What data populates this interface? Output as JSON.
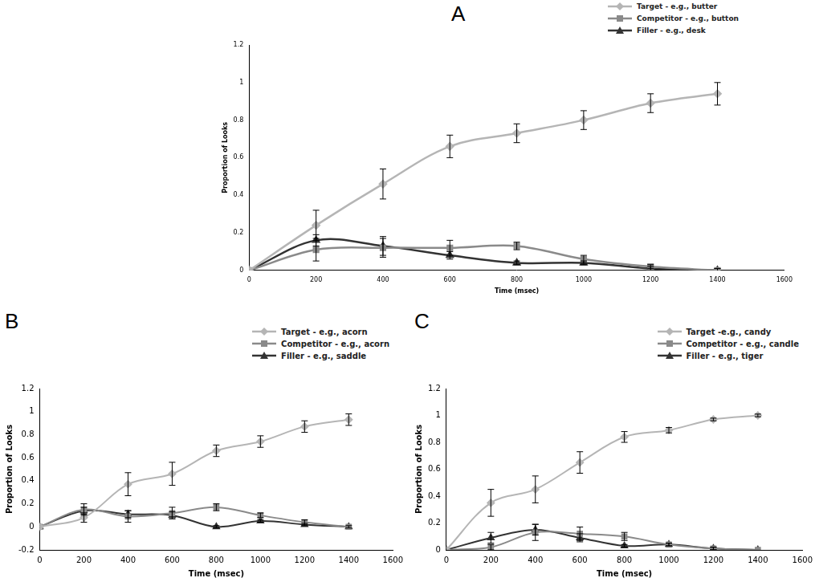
{
  "chart_data": [
    {
      "type": "line",
      "title": "A",
      "x_label": "Time (msec)",
      "y_label": "Proportion of Looks",
      "x": [
        0,
        200,
        400,
        600,
        800,
        1000,
        1200,
        1400
      ],
      "xlim": [
        0,
        1600
      ],
      "xticks": [
        0,
        200,
        400,
        600,
        800,
        1000,
        1200,
        1400,
        1600
      ],
      "ylim": [
        0,
        1.2
      ],
      "yticks": [
        0,
        0.2,
        0.4,
        0.6,
        0.8,
        1,
        1.2
      ],
      "grid": false,
      "legend": "upper right",
      "series": [
        {
          "name": "Target - e.g., butter",
          "color": "#b5b5b5",
          "marker": "diamond",
          "values": [
            0,
            0.24,
            0.46,
            0.66,
            0.73,
            0.8,
            0.89,
            0.94
          ],
          "errors": [
            0,
            0.08,
            0.08,
            0.06,
            0.05,
            0.05,
            0.05,
            0.06
          ]
        },
        {
          "name": "Competitor - e.g., button",
          "color": "#8a8a8a",
          "marker": "square",
          "values": [
            0,
            0.11,
            0.12,
            0.12,
            0.13,
            0.06,
            0.02,
            0
          ],
          "errors": [
            0,
            0.06,
            0.05,
            0.04,
            0.02,
            0.02,
            0.01,
            0.01
          ]
        },
        {
          "name": "Filler - e.g., desk",
          "color": "#333333",
          "marker": "triangle",
          "values": [
            0,
            0.16,
            0.13,
            0.08,
            0.04,
            0.04,
            0.01,
            0
          ],
          "errors": [
            0,
            0.03,
            0.05,
            0.02,
            0.01,
            0.01,
            0.01,
            0.01
          ]
        }
      ]
    },
    {
      "type": "line",
      "title": "B",
      "x_label": "Time (msec)",
      "y_label": "Proportion of Looks",
      "x": [
        0,
        200,
        400,
        600,
        800,
        1000,
        1200,
        1400
      ],
      "xlim": [
        0,
        1600
      ],
      "xticks": [
        0,
        200,
        400,
        600,
        800,
        1000,
        1200,
        1400,
        1600
      ],
      "ylim": [
        -0.2,
        1.2
      ],
      "yticks": [
        -0.2,
        0,
        0.2,
        0.4,
        0.6,
        0.8,
        1,
        1.2
      ],
      "grid": false,
      "legend": "upper right",
      "series": [
        {
          "name": "Target - e.g., acorn",
          "color": "#b5b5b5",
          "marker": "diamond",
          "values": [
            0,
            0.08,
            0.37,
            0.46,
            0.66,
            0.74,
            0.87,
            0.93
          ],
          "errors": [
            0,
            0.04,
            0.1,
            0.1,
            0.05,
            0.05,
            0.05,
            0.05
          ]
        },
        {
          "name": "Competitor - e.g., acorn",
          "color": "#8a8a8a",
          "marker": "square",
          "values": [
            0,
            0.15,
            0.09,
            0.12,
            0.17,
            0.1,
            0.04,
            0
          ],
          "errors": [
            0,
            0.05,
            0.05,
            0.05,
            0.03,
            0.02,
            0.02,
            0.01
          ]
        },
        {
          "name": "Filler - e.g., saddle",
          "color": "#333333",
          "marker": "triangle",
          "values": [
            0,
            0.14,
            0.11,
            0.1,
            0,
            0.05,
            0.02,
            0
          ],
          "errors": [
            0,
            0.03,
            0.03,
            0.03,
            0.01,
            0.01,
            0.01,
            0
          ]
        }
      ]
    },
    {
      "type": "line",
      "title": "C",
      "x_label": "Time (msec)",
      "y_label": "Proportion of Looks",
      "x": [
        0,
        200,
        400,
        600,
        800,
        1000,
        1200,
        1400
      ],
      "xlim": [
        0,
        1600
      ],
      "xticks": [
        0,
        200,
        400,
        600,
        800,
        1000,
        1200,
        1400,
        1600
      ],
      "ylim": [
        0,
        1.2
      ],
      "yticks": [
        0,
        0.2,
        0.4,
        0.6,
        0.8,
        1,
        1.2
      ],
      "grid": false,
      "legend": "upper right",
      "series": [
        {
          "name": "Target -e.g., candy",
          "color": "#b5b5b5",
          "marker": "diamond",
          "values": [
            0,
            0.35,
            0.45,
            0.65,
            0.84,
            0.89,
            0.97,
            1
          ],
          "errors": [
            0,
            0.1,
            0.1,
            0.08,
            0.04,
            0.02,
            0.01,
            0.01
          ]
        },
        {
          "name": "Competitor - e.g., candle",
          "color": "#8a8a8a",
          "marker": "square",
          "values": [
            0,
            0.02,
            0.13,
            0.12,
            0.1,
            0.04,
            0.01,
            0
          ],
          "errors": [
            0,
            0.02,
            0.06,
            0.05,
            0.03,
            0.01,
            0.01,
            0
          ]
        },
        {
          "name": "Filler - e.g., tiger",
          "color": "#333333",
          "marker": "triangle",
          "values": [
            0,
            0.09,
            0.15,
            0.09,
            0.03,
            0.04,
            0.01,
            0
          ],
          "errors": [
            0,
            0.04,
            0.04,
            0.03,
            0.01,
            0.01,
            0.01,
            0
          ]
        }
      ]
    }
  ]
}
